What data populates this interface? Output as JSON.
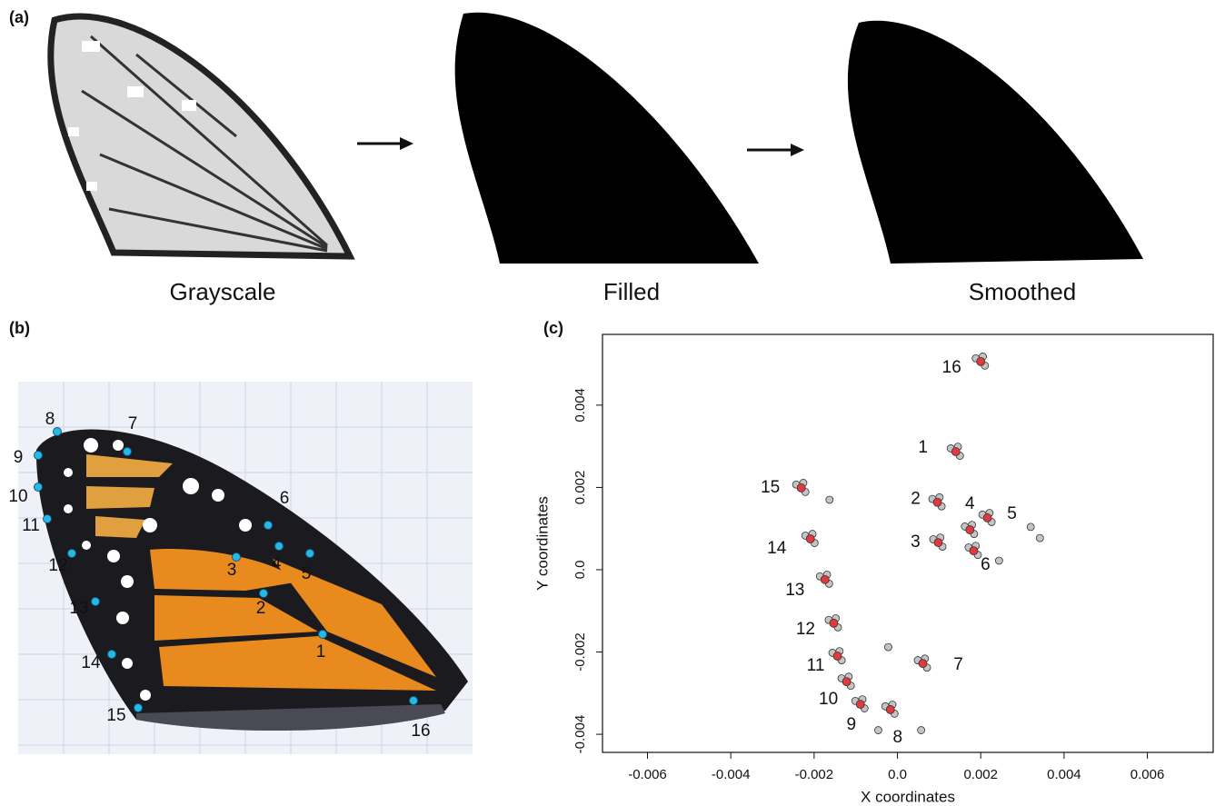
{
  "panels": {
    "a": {
      "label": "(a)",
      "captions": [
        "Grayscale",
        "Filled",
        "Smoothed"
      ]
    },
    "b": {
      "label": "(b)",
      "landmarks": [
        "1",
        "2",
        "3",
        "4",
        "5",
        "6",
        "7",
        "8",
        "9",
        "10",
        "11",
        "12",
        "13",
        "14",
        "15",
        "16"
      ]
    },
    "c": {
      "label": "(c)"
    }
  },
  "chart_data": {
    "type": "scatter",
    "xlabel": "X coordinates",
    "ylabel": "Y coordinates",
    "xlim": [
      -0.00708,
      0.00758
    ],
    "ylim": [
      -0.00444,
      0.00572
    ],
    "xticks": [
      -0.006,
      -0.004,
      -0.002,
      {
        "value": 0,
        "label": "0.0"
      },
      0.002,
      0.004,
      0.006
    ],
    "yticks": [
      -0.004,
      -0.002,
      {
        "value": 0,
        "label": "0.0"
      },
      0.002,
      0.004
    ],
    "point_labels": [
      "1",
      "2",
      "3",
      "4",
      "5",
      "6",
      "7",
      "8",
      "9",
      "10",
      "11",
      "12",
      "13",
      "14",
      "15",
      "16"
    ],
    "series": [
      {
        "color": "#c4c4c4",
        "x": [
          0.00128,
          0.0015,
          0.00145,
          0.00084,
          0.00106,
          0.00101,
          0.00086,
          0.00108,
          0.00103,
          0.00162,
          0.00184,
          0.00179,
          0.00204,
          0.00226,
          0.00221,
          0.00171,
          0.00193,
          0.00188,
          0.00049,
          0.00071,
          0.00066,
          -0.00029,
          -7e-05,
          -0.00012,
          -0.00101,
          -0.00079,
          -0.00084,
          -0.00134,
          -0.00112,
          -0.00117,
          -0.00156,
          -0.00134,
          -0.00139,
          -0.00165,
          -0.00143,
          -0.00148,
          -0.00186,
          -0.00164,
          -0.00169,
          -0.00221,
          -0.00199,
          -0.00204,
          -0.00243,
          -0.00221,
          -0.00226,
          0.00188,
          0.0021,
          0.00205,
          0.0032,
          0.00342,
          -0.00163,
          0.00244,
          -0.00022,
          0.00057,
          -0.00046
        ],
        "values": [
          0.00295,
          0.00277,
          0.00299,
          0.00172,
          0.00154,
          0.00176,
          0.00074,
          0.00056,
          0.00078,
          0.00105,
          0.00087,
          0.00109,
          0.00134,
          0.00116,
          0.00138,
          0.00054,
          0.00036,
          0.00058,
          -0.0022,
          -0.00238,
          -0.00216,
          -0.00332,
          -0.0035,
          -0.00328,
          -0.00319,
          -0.00337,
          -0.00315,
          -0.00264,
          -0.00282,
          -0.0026,
          -0.00202,
          -0.0022,
          -0.00198,
          -0.00122,
          -0.0014,
          -0.00118,
          -0.00016,
          -0.00034,
          -0.00012,
          0.00083,
          0.00065,
          0.00087,
          0.00207,
          0.00189,
          0.00211,
          0.00514,
          0.00496,
          0.00518,
          0.00104,
          0.00077,
          0.0017,
          0.00022,
          -0.00188,
          -0.0039,
          -0.0039
        ]
      },
      {
        "color": "#e0393e",
        "x": [
          0.0014,
          0.00096,
          0.00098,
          0.00174,
          0.00216,
          0.00183,
          0.00061,
          -0.00017,
          -0.00089,
          -0.00122,
          -0.00144,
          -0.00153,
          -0.00174,
          -0.00209,
          -0.00231,
          0.002
        ],
        "values": [
          0.00287,
          0.00164,
          0.00066,
          0.00097,
          0.00126,
          0.00046,
          -0.00228,
          -0.0034,
          -0.00327,
          -0.00272,
          -0.0021,
          -0.0013,
          -0.00024,
          0.00075,
          0.00199,
          0.00506
        ]
      }
    ]
  }
}
